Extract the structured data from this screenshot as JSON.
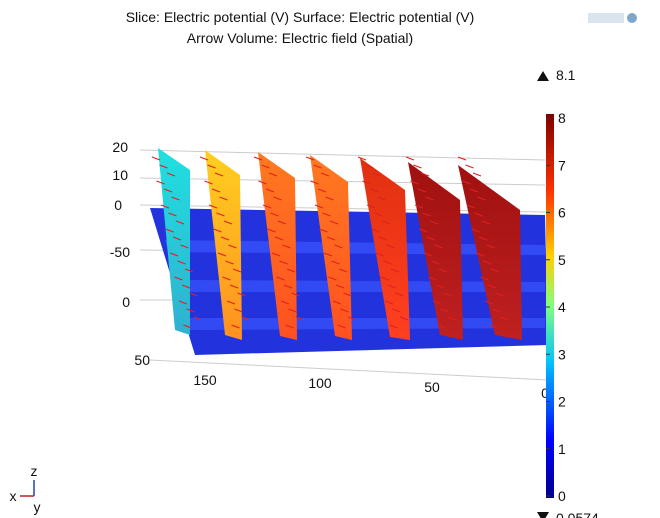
{
  "title": [
    "Slice: Electric potential (V)  Surface: Electric potential (V)",
    "Arrow Volume: Electric field (Spatial)"
  ],
  "colorbar": {
    "max_label": "8.1",
    "min_label": "0.0574",
    "ticks": [
      0,
      1,
      2,
      3,
      4,
      5,
      6,
      7,
      8
    ]
  },
  "axes": {
    "z_ticks": [
      "20",
      "10",
      "0"
    ],
    "y_ticks": [
      "-50",
      "0",
      "50"
    ],
    "x_ticks": [
      "150",
      "100",
      "50",
      "0"
    ]
  },
  "triad": {
    "x": "x",
    "y": "y",
    "z": "z"
  }
}
